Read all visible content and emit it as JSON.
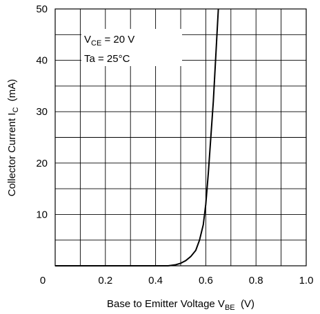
{
  "chart_data": {
    "type": "line",
    "x_axis": {
      "label_main": "Base to Emitter Voltage  V",
      "label_sub": "BE",
      "label_unit": "  (V)",
      "range": [
        0,
        1.0
      ],
      "ticks": [
        0,
        0.2,
        0.4,
        0.6,
        0.8,
        1.0
      ],
      "tick_labels": [
        "0",
        "0.2",
        "0.4",
        "0.6",
        "0.8",
        "1.0"
      ],
      "minor_grid_step": 0.1
    },
    "y_axis": {
      "label_main": "Collector Current  I",
      "label_sub": "C",
      "label_unit": "  (mA)",
      "range": [
        0,
        50
      ],
      "ticks": [
        10,
        20,
        30,
        40,
        50
      ],
      "tick_labels": [
        "10",
        "20",
        "30",
        "40",
        "50"
      ],
      "minor_grid_step": 5
    },
    "grid": true,
    "annotations": {
      "vce_main": "V",
      "vce_sub": "CE",
      "vce_value": " = 20 V",
      "ta": "Ta = 25°C"
    },
    "series": [
      {
        "x": [
          0.0,
          0.45,
          0.48,
          0.5,
          0.52,
          0.54,
          0.56,
          0.575,
          0.59,
          0.6,
          0.61,
          0.62,
          0.63,
          0.64,
          0.65
        ],
        "y": [
          0.0,
          0.0,
          0.2,
          0.5,
          1.0,
          1.8,
          3.0,
          5.0,
          8.0,
          12.0,
          18.0,
          25.0,
          32.0,
          41.0,
          50.0
        ]
      }
    ]
  }
}
